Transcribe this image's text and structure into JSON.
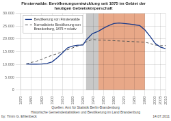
{
  "chart_data": {
    "type": "line",
    "title": "Finsterwalde: Bevölkerungsentwicklung seit 1875 im Gebiet der\nheutigen Gebietskörperschaft",
    "x": [
      1875,
      1880,
      1885,
      1890,
      1895,
      1900,
      1905,
      1910,
      1915,
      1920,
      1925,
      1930,
      1933,
      1939,
      1945,
      1950,
      1955,
      1960,
      1965,
      1970,
      1975,
      1980,
      1985,
      1990,
      1995,
      2000,
      2005,
      2010
    ],
    "series": [
      {
        "name": "Bevölkerung von Finsterwalde",
        "color": "#1a3a8a",
        "line_style": "solid",
        "values": [
          10200,
          10100,
          10100,
          10200,
          10400,
          11000,
          12600,
          14500,
          16500,
          17200,
          17500,
          17600,
          19500,
          22000,
          23000,
          24200,
          25200,
          26000,
          26200,
          26000,
          25800,
          25500,
          25200,
          23500,
          21000,
          18200,
          16800,
          16200
        ]
      },
      {
        "name": "Normalisierte Bevölkerung von\nBrandenburg, 1875 = relativ",
        "color": "#555555",
        "line_style": "dashed",
        "values": [
          10200,
          10800,
          11300,
          12000,
          12800,
          13600,
          14200,
          15000,
          15800,
          16500,
          17200,
          18000,
          18800,
          19800,
          19500,
          19500,
          19400,
          19300,
          19200,
          19100,
          19000,
          18900,
          18800,
          18700,
          18200,
          17600,
          17300,
          17400
        ]
      }
    ],
    "xlim": [
      1870,
      2010
    ],
    "xticks": [
      1870,
      1880,
      1890,
      1900,
      1910,
      1920,
      1930,
      1940,
      1950,
      1960,
      1970,
      1980,
      1990,
      2000,
      2005,
      2010
    ],
    "ylim": [
      0,
      30000
    ],
    "yticks": [
      0,
      {
        "value": 5000,
        "label": "5.000"
      },
      {
        "value": 10000,
        "label": "10.000"
      },
      {
        "value": 15000,
        "label": "15.000"
      },
      {
        "value": 20000,
        "label": "20.000"
      },
      {
        "value": 25000,
        "label": "25.000"
      },
      {
        "value": 30000,
        "label": "30.000"
      }
    ],
    "grid": true,
    "legend": "upper left",
    "spans": [
      {
        "start": 1933,
        "end": 1945,
        "color": "#c8c8c8"
      },
      {
        "start": 1945,
        "end": 1990,
        "color": "#e8a888"
      }
    ],
    "source": [
      "Quellen: Amt für Statistik Berlin-Brandenburg",
      "Historische Gemeindestatistiken und Bevölkerung im Land Brandenburg"
    ],
    "author": "by: Timm G. Ehlenbeck",
    "date": "14.07.2011"
  }
}
